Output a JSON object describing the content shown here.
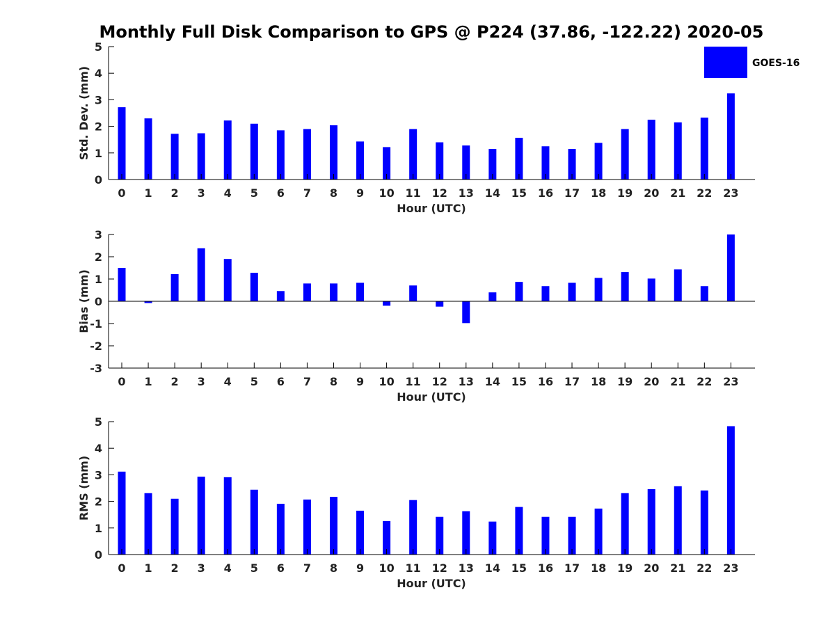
{
  "title": "Monthly Full Disk Comparison to GPS @ P224 (37.86, -122.22) 2020-05",
  "legend": {
    "label": "GOES-16",
    "color": "#0000ff",
    "placement": "top-right"
  },
  "chart_data": [
    {
      "type": "bar",
      "categories": [
        "0",
        "1",
        "2",
        "3",
        "4",
        "5",
        "6",
        "7",
        "8",
        "9",
        "10",
        "11",
        "12",
        "13",
        "14",
        "15",
        "16",
        "17",
        "18",
        "19",
        "20",
        "21",
        "22",
        "23"
      ],
      "series": [
        {
          "name": "GOES-16",
          "values": [
            2.72,
            2.3,
            1.72,
            1.74,
            2.22,
            2.1,
            1.85,
            1.9,
            2.04,
            1.43,
            1.22,
            1.9,
            1.4,
            1.28,
            1.15,
            1.57,
            1.25,
            1.15,
            1.38,
            1.9,
            2.25,
            2.15,
            2.33,
            3.24
          ],
          "color": "#0000ff"
        }
      ],
      "xlabel": "Hour (UTC)",
      "ylabel": "Std. Dev. (mm)",
      "ylim": [
        0,
        5
      ],
      "yticks": [
        0,
        1,
        2,
        3,
        4,
        5
      ],
      "grid": false
    },
    {
      "type": "bar",
      "categories": [
        "0",
        "1",
        "2",
        "3",
        "4",
        "5",
        "6",
        "7",
        "8",
        "9",
        "10",
        "11",
        "12",
        "13",
        "14",
        "15",
        "16",
        "17",
        "18",
        "19",
        "20",
        "21",
        "22",
        "23"
      ],
      "series": [
        {
          "name": "GOES-16",
          "values": [
            1.5,
            -0.08,
            1.22,
            2.38,
            1.9,
            1.28,
            0.46,
            0.8,
            0.8,
            0.83,
            -0.2,
            0.71,
            -0.24,
            -0.98,
            0.4,
            0.87,
            0.68,
            0.83,
            1.05,
            1.31,
            1.02,
            1.43,
            0.68,
            3.0
          ],
          "color": "#0000ff"
        }
      ],
      "xlabel": "Hour (UTC)",
      "ylabel": "Bias (mm)",
      "ylim": [
        -3,
        3
      ],
      "yticks": [
        -3,
        -2,
        -1,
        0,
        1,
        2,
        3
      ],
      "grid": false
    },
    {
      "type": "bar",
      "categories": [
        "0",
        "1",
        "2",
        "3",
        "4",
        "5",
        "6",
        "7",
        "8",
        "9",
        "10",
        "11",
        "12",
        "13",
        "14",
        "15",
        "16",
        "17",
        "18",
        "19",
        "20",
        "21",
        "22",
        "23"
      ],
      "series": [
        {
          "name": "GOES-16",
          "values": [
            3.12,
            2.31,
            2.1,
            2.93,
            2.91,
            2.44,
            1.91,
            2.07,
            2.17,
            1.65,
            1.26,
            2.05,
            1.42,
            1.63,
            1.24,
            1.79,
            1.42,
            1.42,
            1.73,
            2.31,
            2.46,
            2.57,
            2.41,
            4.83
          ],
          "color": "#0000ff"
        }
      ],
      "xlabel": "Hour (UTC)",
      "ylabel": "RMS (mm)",
      "ylim": [
        0,
        5
      ],
      "yticks": [
        0,
        1,
        2,
        3,
        4,
        5
      ],
      "grid": false
    }
  ]
}
